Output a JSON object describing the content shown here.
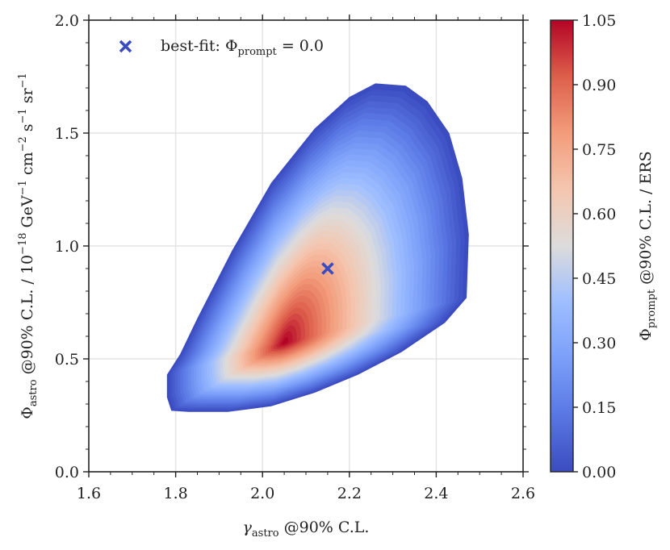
{
  "chart_data": {
    "type": "heatmap",
    "title": "",
    "x_axis": {
      "label_symbol": "γ",
      "label_subscript": "astro",
      "label_suffix": " @90% C.L.",
      "range": [
        1.6,
        2.6
      ],
      "ticks": [
        1.6,
        1.8,
        2.0,
        2.2,
        2.4,
        2.6
      ],
      "tick_labels": [
        "1.6",
        "1.8",
        "2.0",
        "2.2",
        "2.4",
        "2.6"
      ]
    },
    "y_axis": {
      "label_symbol": "Φ",
      "label_subscript": "astro",
      "label_suffix": " @90% C.L. / 10",
      "label_exp1": "−18",
      "label_unit1": " GeV",
      "label_exp2": "−1",
      "label_unit2": " cm",
      "label_exp3": "−2",
      "label_unit3": " s",
      "label_exp4": "−1",
      "label_unit4": " sr",
      "label_exp5": "−1",
      "range": [
        0.0,
        2.0
      ],
      "ticks": [
        0.0,
        0.5,
        1.0,
        1.5,
        2.0
      ],
      "tick_labels": [
        "0.0",
        "0.5",
        "1.0",
        "1.5",
        "2.0"
      ]
    },
    "colorbar": {
      "label_symbol": "Φ",
      "label_subscript": "prompt",
      "label_suffix": " @90% C.L. / ERS",
      "range": [
        0.0,
        1.05
      ],
      "ticks": [
        0.0,
        0.15,
        0.3,
        0.45,
        0.6,
        0.75,
        0.9,
        1.05
      ],
      "tick_labels": [
        "0.00",
        "0.15",
        "0.30",
        "0.45",
        "0.60",
        "0.75",
        "0.90",
        "1.05"
      ],
      "colormap": "coolwarm"
    },
    "region": {
      "description_points_note": "allowed (gamma, phi) region colored by prompt-flux upper limit",
      "boundary": [
        [
          1.79,
          0.27
        ],
        [
          1.83,
          0.265
        ],
        [
          1.92,
          0.265
        ],
        [
          2.02,
          0.29
        ],
        [
          2.12,
          0.35
        ],
        [
          2.22,
          0.43
        ],
        [
          2.32,
          0.53
        ],
        [
          2.42,
          0.66
        ],
        [
          2.47,
          0.77
        ],
        [
          2.475,
          1.05
        ],
        [
          2.46,
          1.3
        ],
        [
          2.43,
          1.5
        ],
        [
          2.38,
          1.64
        ],
        [
          2.33,
          1.71
        ],
        [
          2.26,
          1.72
        ],
        [
          2.2,
          1.66
        ],
        [
          2.12,
          1.52
        ],
        [
          2.02,
          1.28
        ],
        [
          1.93,
          0.98
        ],
        [
          1.85,
          0.68
        ],
        [
          1.81,
          0.52
        ],
        [
          1.78,
          0.43
        ],
        [
          1.78,
          0.33
        ]
      ],
      "max_point": [
        2.05,
        0.57
      ],
      "max_value": 1.05
    },
    "best_fit": {
      "x": 2.15,
      "y": 0.9,
      "marker": "x",
      "color": "#3b4cc0",
      "legend_prefix": "best-fit: ",
      "legend_symbol": "Φ",
      "legend_subscript": "prompt",
      "legend_suffix": " = 0.0"
    },
    "grid": true
  }
}
